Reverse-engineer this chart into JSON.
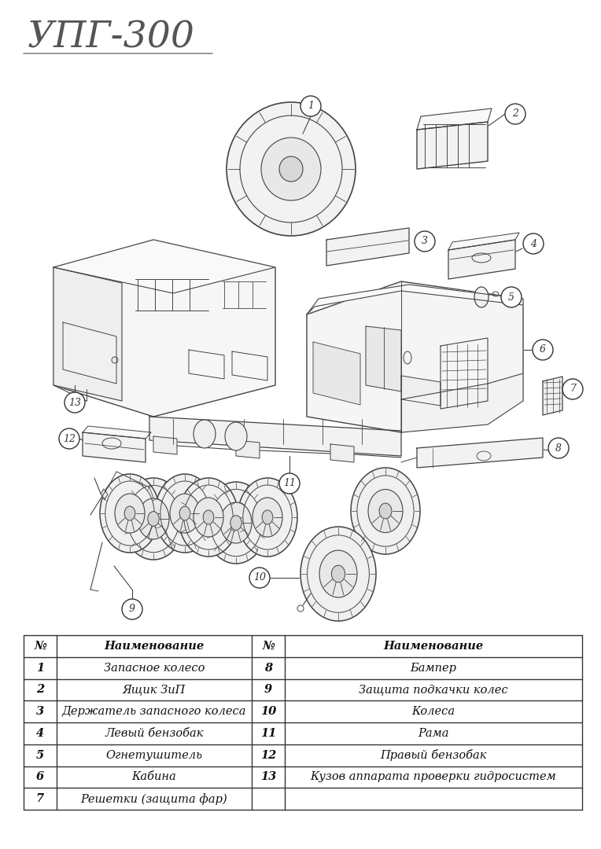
{
  "title": "УПГ-300",
  "background_color": "#ffffff",
  "line_color": "#444444",
  "table_header": [
    "№",
    "Наименование",
    "№",
    "Наименование"
  ],
  "table_rows": [
    [
      "1",
      "Запасное колесо",
      "8",
      "Бампер"
    ],
    [
      "2",
      "Ящик ЗиП",
      "9",
      "Защита подкачки колес"
    ],
    [
      "3",
      "Держатель запасного колеса",
      "10",
      "Колеса"
    ],
    [
      "4",
      "Левый бензобак",
      "11",
      "Рама"
    ],
    [
      "5",
      "Огнетушитель",
      "12",
      "Правый бензобак"
    ],
    [
      "6",
      "Кабина",
      "13",
      "Кузов аппарата проверки гидросистем"
    ],
    [
      "7",
      "Решетки (защита фар)",
      "",
      ""
    ]
  ],
  "font_size_title": 34,
  "font_size_table": 10.5,
  "border_color": "#333333",
  "label_circle_r": 13,
  "label_font_size": 9
}
